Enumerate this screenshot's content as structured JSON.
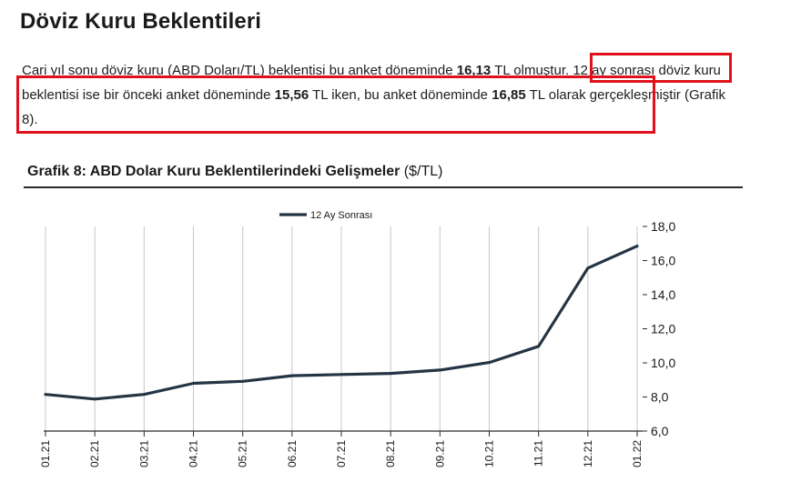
{
  "heading": "Döviz Kuru Beklentileri",
  "paragraph": {
    "p1": "Cari yıl sonu döviz kuru (ABD Doları/TL) beklentisi bu anket döneminde ",
    "v1": "16,13",
    "p2": " TL olmuştur. 12 ay sonrası döviz kuru beklentisi ise bir önceki anket döneminde ",
    "v2": "15,56",
    "p3": " TL iken, bu anket döneminde ",
    "v3": "16,85",
    "p4": " TL olarak gerçekleşmiştir (Grafik 8)."
  },
  "colors": {
    "highlight": "#e0111b",
    "series": "#243444",
    "grid": "#c8c8c8",
    "axis": "#2b2b2b"
  },
  "chart_data": {
    "type": "line",
    "title": "Grafik 8: ABD Dolar Kuru Beklentilerindeki Gelişmeler",
    "title_unit": "($/TL)",
    "categories": [
      "01.21",
      "02.21",
      "03.21",
      "04.21",
      "05.21",
      "06.21",
      "07.21",
      "08.21",
      "09.21",
      "10.21",
      "11.21",
      "12.21",
      "01.22"
    ],
    "series": [
      {
        "name": "12 Ay Sonrası",
        "values": [
          8.15,
          7.88,
          8.15,
          8.8,
          8.92,
          9.25,
          9.32,
          9.38,
          9.58,
          10.02,
          10.97,
          15.56,
          16.85
        ]
      }
    ],
    "ylim": [
      6.0,
      18.0
    ],
    "yticks": [
      "6,0",
      "8,0",
      "10,0",
      "12,0",
      "14,0",
      "16,0",
      "18,0"
    ],
    "y_axis_side": "right",
    "grid": "vertical",
    "legend_position": "top-center"
  }
}
